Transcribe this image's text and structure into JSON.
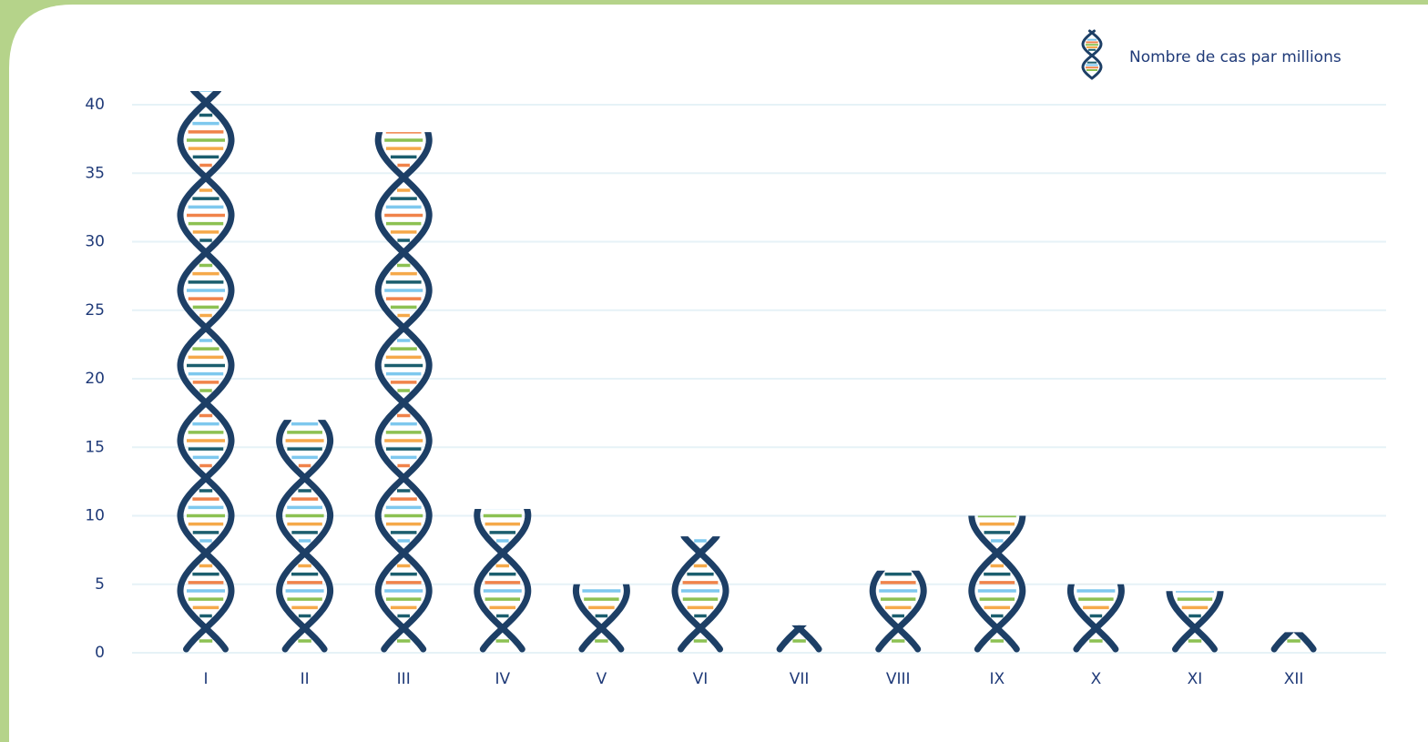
{
  "chart_data": {
    "type": "bar",
    "categories": [
      "I",
      "II",
      "III",
      "IV",
      "V",
      "VI",
      "VII",
      "VIII",
      "IX",
      "X",
      "XI",
      "XII"
    ],
    "series": [
      {
        "name": "Nombre de cas par millions",
        "color": "#1d3f66",
        "values": [
          41,
          17,
          38,
          10.5,
          5,
          8.5,
          2,
          6,
          10,
          5,
          4.5,
          1.5
        ]
      }
    ],
    "ylim": [
      0,
      40
    ],
    "yticks": [
      0,
      5,
      10,
      15,
      20,
      25,
      30,
      35,
      40
    ],
    "grid": true,
    "legend": "top-right"
  }
}
